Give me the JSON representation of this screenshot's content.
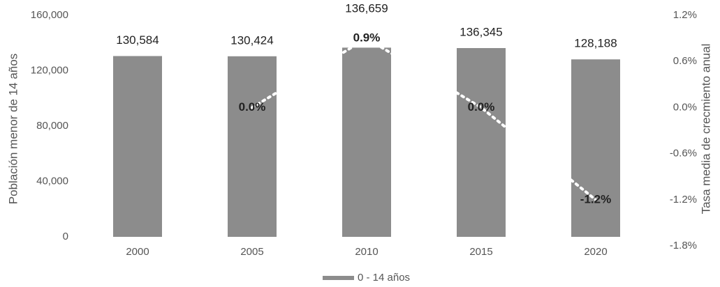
{
  "chart_data": {
    "type": "bar",
    "y_label": "Población menor de 14 años",
    "y2_label": "Tasa media de crecmiento anual",
    "categories": [
      "2000",
      "2005",
      "2010",
      "2015",
      "2020"
    ],
    "series": [
      {
        "name": "0 - 14 años",
        "color": "#8c8c8c",
        "values": [
          130584,
          130424,
          136659,
          136345,
          128188
        ],
        "value_labels": [
          "130,584",
          "130,424",
          "136,659",
          "136,345",
          "128,188"
        ]
      },
      {
        "type": "line",
        "axis": "y2",
        "color": "#ffffff",
        "values": [
          null,
          0.0,
          0.9,
          0.0,
          -1.2
        ],
        "value_labels": [
          null,
          "0.0%",
          "0.9%",
          "0.0%",
          "-1.2%"
        ]
      }
    ],
    "ylim": [
      0,
      160000
    ],
    "yticks": [
      0,
      {
        "value": 40000,
        "label": "40,000"
      },
      {
        "value": 80000,
        "label": "80,000"
      },
      {
        "value": 120000,
        "label": "120,000"
      },
      {
        "value": 160000,
        "label": "160,000"
      }
    ],
    "y2lim": [
      -1.8,
      1.2
    ],
    "y2ticks": [
      {
        "value": -1.8,
        "label": "-1.8%"
      },
      {
        "value": -1.2,
        "label": "-1.2%"
      },
      {
        "value": -0.6,
        "label": "-0.6%"
      },
      {
        "value": 0.0,
        "label": "0.0%"
      },
      {
        "value": 0.6,
        "label": "0.6%"
      },
      {
        "value": 1.2,
        "label": "1.2%"
      }
    ],
    "grid": false,
    "legend": "bottom"
  }
}
